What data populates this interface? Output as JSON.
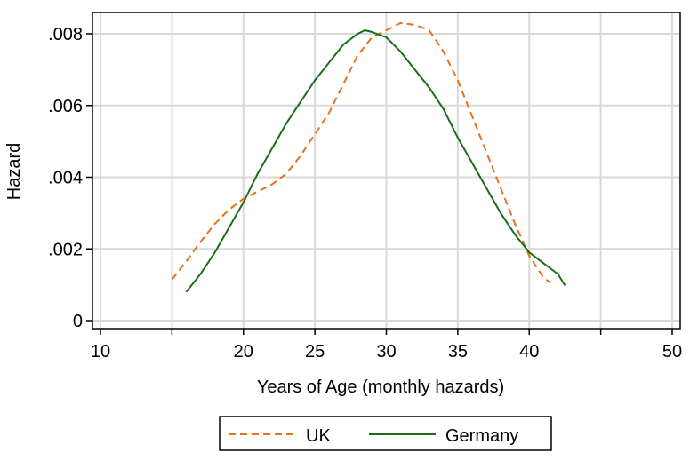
{
  "chart_data": {
    "type": "line",
    "xlabel": "Years of Age (monthly hazards)",
    "ylabel": "Hazard",
    "xlim": [
      10,
      50
    ],
    "ylim": [
      0,
      0.0083
    ],
    "x_ticks": [
      10,
      15,
      20,
      25,
      30,
      35,
      40,
      45,
      50
    ],
    "x_tick_labels": [
      "10",
      "",
      "20",
      "25",
      "30",
      "35",
      "40",
      "",
      "50"
    ],
    "y_ticks": [
      0,
      0.002,
      0.004,
      0.006,
      0.008
    ],
    "y_tick_labels": [
      "0",
      ".002",
      ".004",
      ".006",
      ".008"
    ],
    "grid": true,
    "legend_position": "bottom",
    "series": [
      {
        "name": "UK",
        "style": "dashed",
        "color": "#e8711e",
        "points": [
          [
            15.0,
            0.00115
          ],
          [
            16.0,
            0.00165
          ],
          [
            17.0,
            0.0022
          ],
          [
            18.0,
            0.0027
          ],
          [
            19.0,
            0.0031
          ],
          [
            20.0,
            0.0034
          ],
          [
            21.0,
            0.0036
          ],
          [
            22.0,
            0.0038
          ],
          [
            23.0,
            0.0041
          ],
          [
            24.0,
            0.0046
          ],
          [
            25.0,
            0.0052
          ],
          [
            26.0,
            0.0058
          ],
          [
            27.0,
            0.0066
          ],
          [
            28.0,
            0.0074
          ],
          [
            29.0,
            0.0079
          ],
          [
            30.0,
            0.0081
          ],
          [
            31.0,
            0.0083
          ],
          [
            32.0,
            0.00825
          ],
          [
            33.0,
            0.0081
          ],
          [
            34.0,
            0.0075
          ],
          [
            35.0,
            0.0067
          ],
          [
            36.0,
            0.0057
          ],
          [
            37.0,
            0.0047
          ],
          [
            38.0,
            0.0037
          ],
          [
            39.0,
            0.0027
          ],
          [
            40.0,
            0.0018
          ],
          [
            41.0,
            0.0012
          ],
          [
            41.5,
            0.00105
          ]
        ]
      },
      {
        "name": "Germany",
        "style": "solid",
        "color": "#1a6e1a",
        "points": [
          [
            16.0,
            0.0008
          ],
          [
            17.0,
            0.0013
          ],
          [
            18.0,
            0.0019
          ],
          [
            19.0,
            0.0026
          ],
          [
            20.0,
            0.0033
          ],
          [
            21.0,
            0.0041
          ],
          [
            22.0,
            0.0048
          ],
          [
            23.0,
            0.0055
          ],
          [
            24.0,
            0.0061
          ],
          [
            25.0,
            0.0067
          ],
          [
            26.0,
            0.0072
          ],
          [
            27.0,
            0.0077
          ],
          [
            28.0,
            0.008
          ],
          [
            28.5,
            0.0081
          ],
          [
            29.0,
            0.00805
          ],
          [
            30.0,
            0.0079
          ],
          [
            31.0,
            0.0075
          ],
          [
            32.0,
            0.007
          ],
          [
            33.0,
            0.0065
          ],
          [
            34.0,
            0.0059
          ],
          [
            35.0,
            0.0051
          ],
          [
            36.0,
            0.0044
          ],
          [
            37.0,
            0.0037
          ],
          [
            38.0,
            0.003
          ],
          [
            39.0,
            0.0024
          ],
          [
            40.0,
            0.0019
          ],
          [
            41.0,
            0.0016
          ],
          [
            42.0,
            0.0013
          ],
          [
            42.5,
            0.00098
          ]
        ]
      }
    ]
  }
}
